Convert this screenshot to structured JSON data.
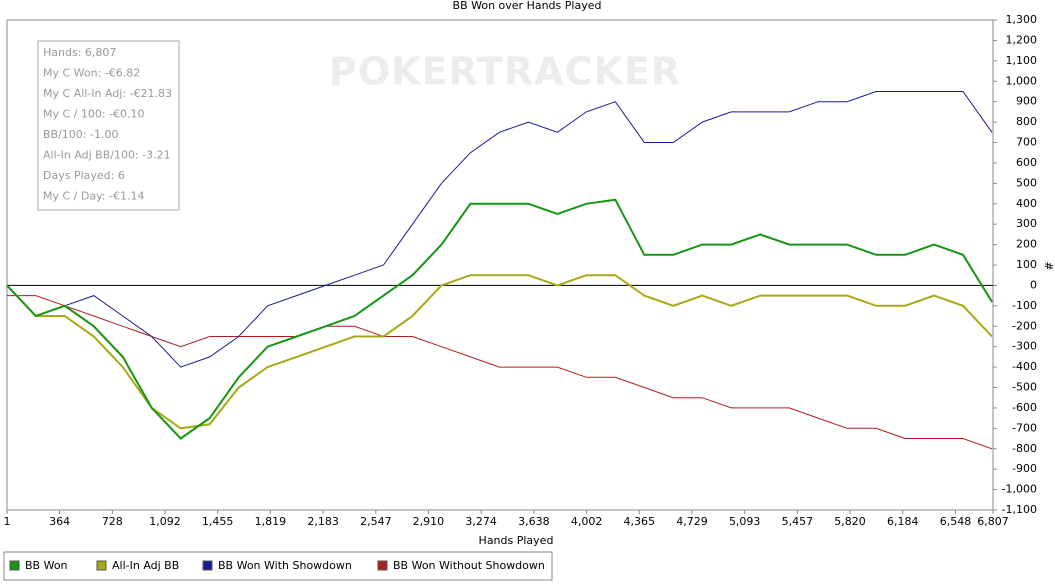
{
  "chart_data": {
    "type": "line",
    "title": "BB Won over Hands Played",
    "x_label": "Hands Played",
    "y_label": "#",
    "watermark": "POKERTRACKER",
    "annotations": [
      "Hands: 6,807",
      "My C Won: -€6.82",
      "My C All-In Adj: -€21.83",
      "My C / 100: -€0.10",
      "BB/100: -1.00",
      "All-In Adj BB/100: -3.21",
      "Days Played: 6",
      "My C / Day: -€1.14"
    ],
    "legend": "bottom",
    "x": [
      1,
      200,
      400,
      600,
      800,
      1000,
      1200,
      1400,
      1600,
      1800,
      2000,
      2200,
      2400,
      2600,
      2800,
      3000,
      3200,
      3400,
      3600,
      3800,
      4000,
      4200,
      4400,
      4600,
      4800,
      5000,
      5200,
      5400,
      5600,
      5800,
      6000,
      6200,
      6400,
      6600,
      6800
    ],
    "series": [
      {
        "name": "BB Won",
        "color": "#159615",
        "values": [
          0,
          -150,
          -100,
          -200,
          -350,
          -600,
          -750,
          -650,
          -450,
          -300,
          -250,
          -200,
          -150,
          -50,
          50,
          200,
          400,
          400,
          400,
          350,
          400,
          420,
          150,
          150,
          200,
          200,
          250,
          200,
          200,
          200,
          150,
          150,
          200,
          150,
          -80
        ]
      },
      {
        "name": "All-In Adj BB",
        "color": "#a8a816",
        "values": [
          0,
          -150,
          -150,
          -250,
          -400,
          -600,
          -700,
          -680,
          -500,
          -400,
          -350,
          -300,
          -250,
          -250,
          -150,
          0,
          50,
          50,
          50,
          0,
          50,
          50,
          -50,
          -100,
          -50,
          -100,
          -50,
          -50,
          -50,
          -50,
          -100,
          -100,
          -50,
          -100,
          -250
        ]
      },
      {
        "name": "BB Won With Showdown",
        "color": "#1a1a96",
        "values": [
          0,
          -150,
          -100,
          -50,
          -150,
          -250,
          -400,
          -350,
          -250,
          -100,
          -50,
          0,
          50,
          100,
          300,
          500,
          650,
          750,
          800,
          750,
          850,
          900,
          700,
          700,
          800,
          850,
          850,
          850,
          900,
          900,
          950,
          950,
          950,
          950,
          750
        ]
      },
      {
        "name": "BB Won Without Showdown",
        "color": "#b01e1e",
        "values": [
          -50,
          -50,
          -100,
          -150,
          -200,
          -250,
          -300,
          -250,
          -250,
          -250,
          -250,
          -200,
          -200,
          -250,
          -250,
          -300,
          -350,
          -400,
          -400,
          -400,
          -450,
          -450,
          -500,
          -550,
          -550,
          -600,
          -600,
          -600,
          -650,
          -700,
          -700,
          -750,
          -750,
          -750,
          -800
        ]
      }
    ],
    "xlim": [
      1,
      6807
    ],
    "xticks": [
      1,
      364,
      728,
      {
        "value": 1092,
        "label": "1,092"
      },
      {
        "value": 1455,
        "label": "1,455"
      },
      {
        "value": 1819,
        "label": "1,819"
      },
      {
        "value": 2183,
        "label": "2,183"
      },
      {
        "value": 2547,
        "label": "2,547"
      },
      {
        "value": 2910,
        "label": "2,910"
      },
      {
        "value": 3274,
        "label": "3,274"
      },
      {
        "value": 3638,
        "label": "3,638"
      },
      {
        "value": 4002,
        "label": "4,002"
      },
      {
        "value": 4365,
        "label": "4,365"
      },
      {
        "value": 4729,
        "label": "4,729"
      },
      {
        "value": 5093,
        "label": "5,093"
      },
      {
        "value": 5457,
        "label": "5,457"
      },
      {
        "value": 5820,
        "label": "5,820"
      },
      {
        "value": 6184,
        "label": "6,184"
      },
      {
        "value": 6548,
        "label": "6,548"
      },
      {
        "value": 6807,
        "label": "6,807"
      }
    ],
    "ylim": [
      -1100,
      1300
    ],
    "yticks": [
      {
        "value": -1100,
        "label": "-1,100"
      },
      {
        "value": -1000,
        "label": "-1,000"
      },
      -900,
      -800,
      -700,
      -600,
      -500,
      -400,
      -300,
      -200,
      -100,
      0,
      100,
      200,
      300,
      400,
      500,
      600,
      700,
      800,
      900,
      {
        "value": 1000,
        "label": "1,000"
      },
      {
        "value": 1100,
        "label": "1,100"
      },
      {
        "value": 1200,
        "label": "1,200"
      },
      {
        "value": 1300,
        "label": "1,300"
      }
    ],
    "grid": false
  }
}
